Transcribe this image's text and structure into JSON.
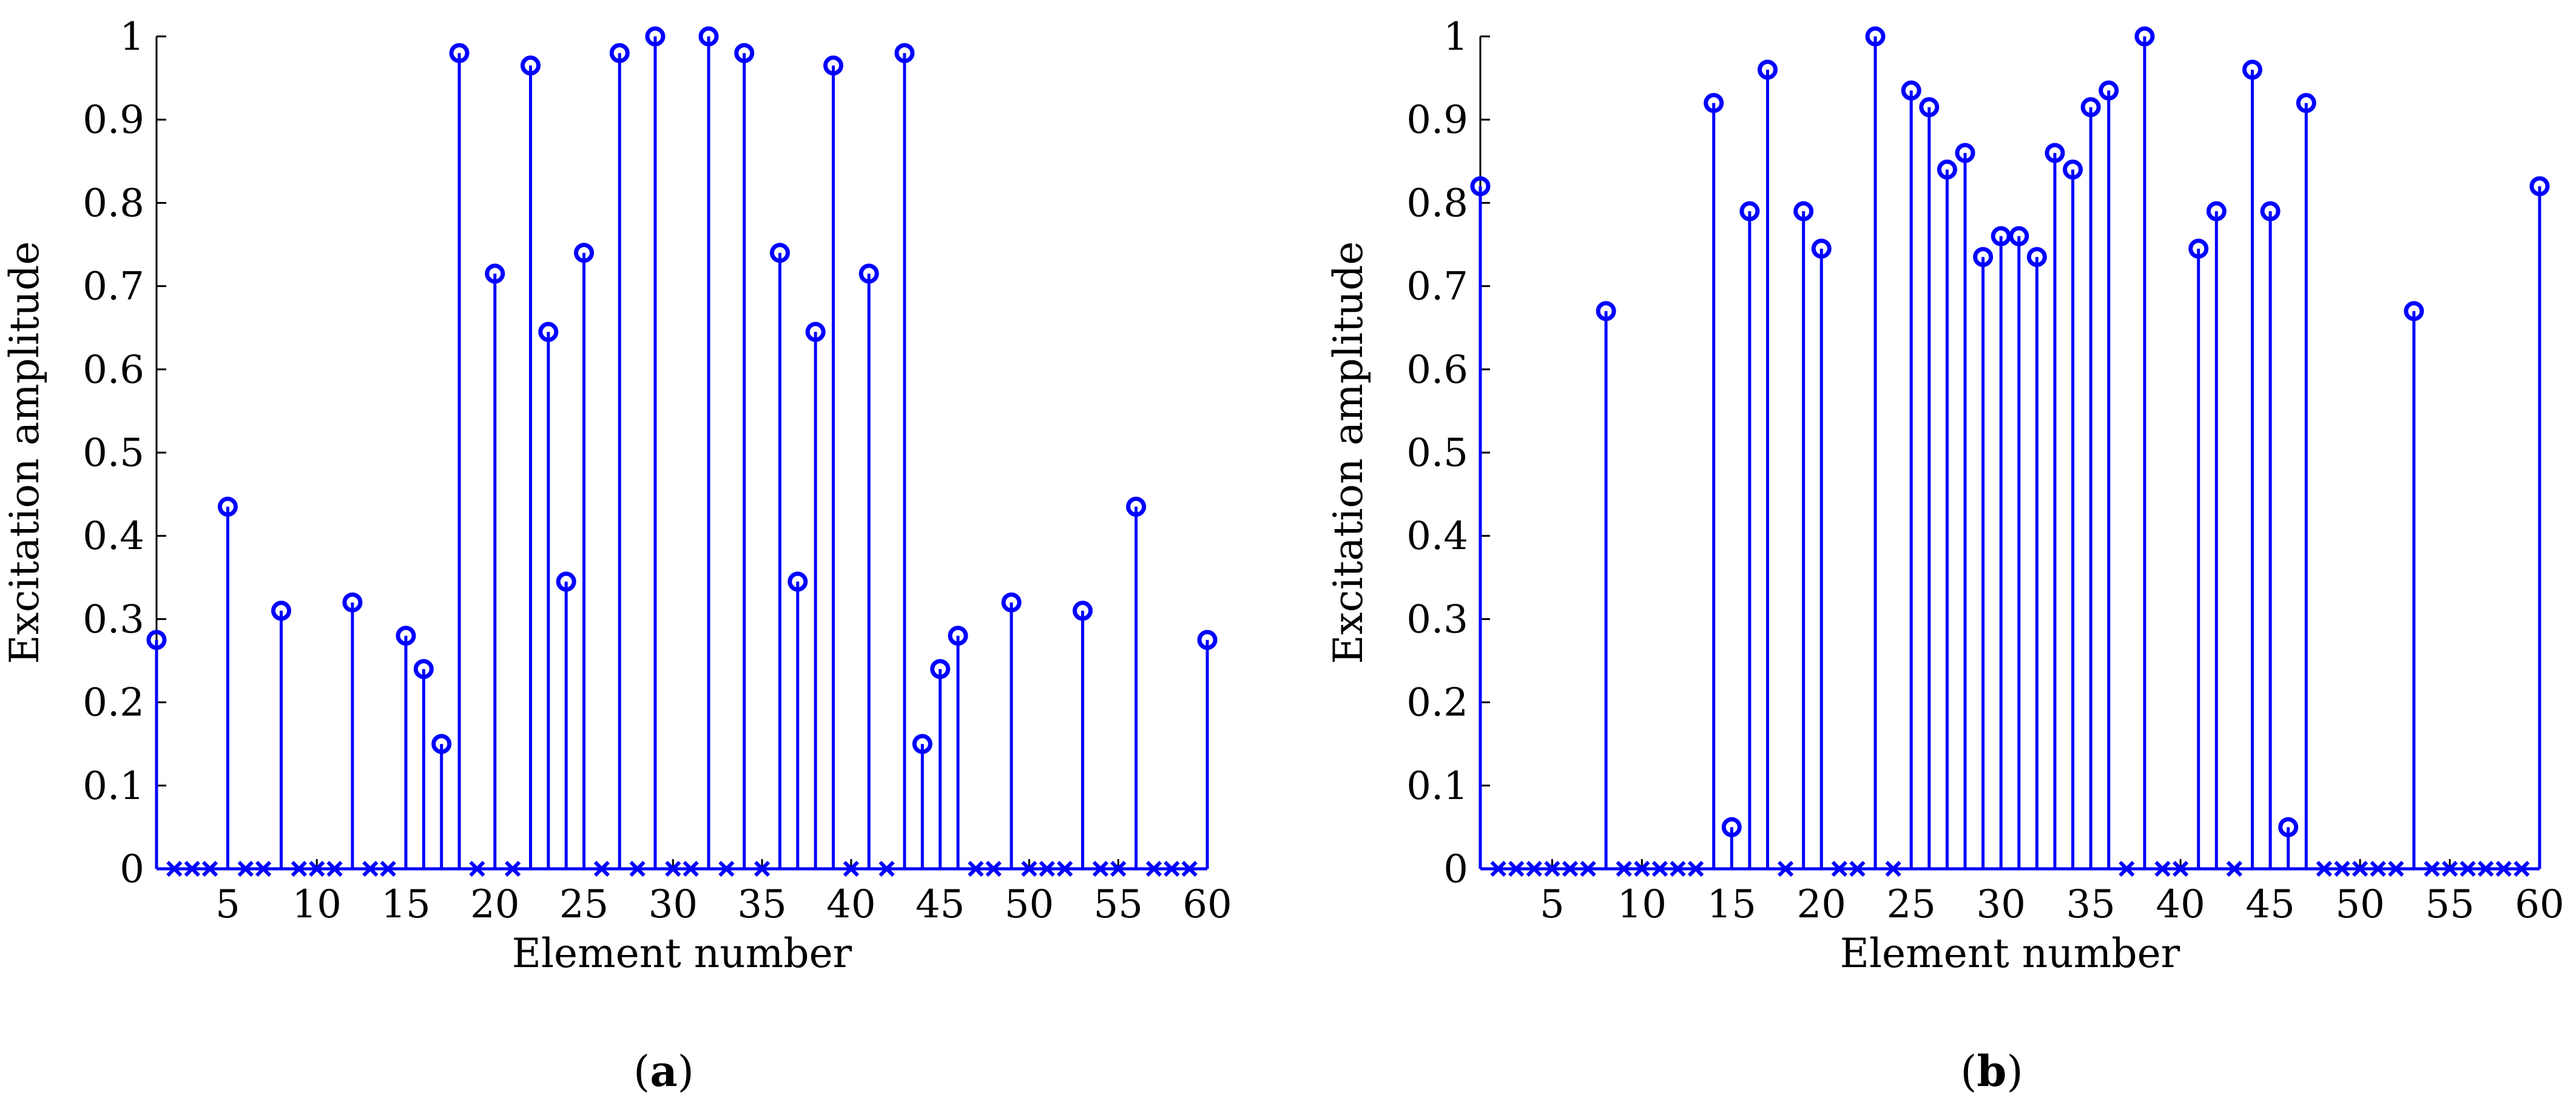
{
  "colors": {
    "series": "#0000ff",
    "axis": "#000000"
  },
  "chart_data": [
    {
      "type": "stem",
      "panel_label": "a",
      "xlabel": "Element number",
      "ylabel": "Excitation amplitude",
      "xlim": [
        1,
        60
      ],
      "ylim": [
        0,
        1
      ],
      "xticks": [
        5,
        10,
        15,
        20,
        25,
        30,
        35,
        40,
        45,
        50,
        55,
        60
      ],
      "xtick_labels": [
        "5",
        "10",
        "15",
        "20",
        "25",
        "30",
        "35",
        "40",
        "45",
        "50",
        "55",
        "60"
      ],
      "yticks": [
        0,
        0.1,
        0.2,
        0.3,
        0.4,
        0.5,
        0.6,
        0.7,
        0.8,
        0.9,
        1
      ],
      "ytick_labels": [
        "0",
        "0.1",
        "0.2",
        "0.3",
        "0.4",
        "0.5",
        "0.6",
        "0.7",
        "0.8",
        "0.9",
        "1"
      ],
      "x": [
        1,
        2,
        3,
        4,
        5,
        6,
        7,
        8,
        9,
        10,
        11,
        12,
        13,
        14,
        15,
        16,
        17,
        18,
        19,
        20,
        21,
        22,
        23,
        24,
        25,
        26,
        27,
        28,
        29,
        30,
        31,
        32,
        33,
        34,
        35,
        36,
        37,
        38,
        39,
        40,
        41,
        42,
        43,
        44,
        45,
        46,
        47,
        48,
        49,
        50,
        51,
        52,
        53,
        54,
        55,
        56,
        57,
        58,
        59,
        60
      ],
      "values": [
        0.275,
        0,
        0,
        0,
        0.435,
        0,
        0,
        0.31,
        0,
        0,
        0,
        0.32,
        0,
        0,
        0.28,
        0.24,
        0.15,
        0.98,
        0,
        0.715,
        0,
        0.965,
        0.645,
        0.345,
        0.74,
        0,
        0.98,
        0,
        1.0,
        0,
        0,
        1.0,
        0,
        0.98,
        0,
        0.74,
        0.345,
        0.645,
        0.965,
        0,
        0.715,
        0,
        0.98,
        0.15,
        0.24,
        0.28,
        0,
        0,
        0.32,
        0,
        0,
        0,
        0.31,
        0,
        0,
        0.435,
        0,
        0,
        0,
        0.275
      ]
    },
    {
      "type": "stem",
      "panel_label": "b",
      "xlabel": "Element number",
      "ylabel": "Excitation amplitude",
      "xlim": [
        1,
        60
      ],
      "ylim": [
        0,
        1
      ],
      "xticks": [
        5,
        10,
        15,
        20,
        25,
        30,
        35,
        40,
        45,
        50,
        55,
        60
      ],
      "xtick_labels": [
        "5",
        "10",
        "15",
        "20",
        "25",
        "30",
        "35",
        "40",
        "45",
        "50",
        "55",
        "60"
      ],
      "yticks": [
        0,
        0.1,
        0.2,
        0.3,
        0.4,
        0.5,
        0.6,
        0.7,
        0.8,
        0.9,
        1
      ],
      "ytick_labels": [
        "0",
        "0.1",
        "0.2",
        "0.3",
        "0.4",
        "0.5",
        "0.6",
        "0.7",
        "0.8",
        "0.9",
        "1"
      ],
      "x": [
        1,
        2,
        3,
        4,
        5,
        6,
        7,
        8,
        9,
        10,
        11,
        12,
        13,
        14,
        15,
        16,
        17,
        18,
        19,
        20,
        21,
        22,
        23,
        24,
        25,
        26,
        27,
        28,
        29,
        30,
        31,
        32,
        33,
        34,
        35,
        36,
        37,
        38,
        39,
        40,
        41,
        42,
        43,
        44,
        45,
        46,
        47,
        48,
        49,
        50,
        51,
        52,
        53,
        54,
        55,
        56,
        57,
        58,
        59,
        60
      ],
      "values": [
        0.82,
        0,
        0,
        0,
        0,
        0,
        0,
        0.67,
        0,
        0,
        0,
        0,
        0,
        0.92,
        0.05,
        0.79,
        0.96,
        0,
        0.79,
        0.745,
        0,
        0,
        1.0,
        0,
        0.935,
        0.915,
        0.84,
        0.86,
        0.735,
        0.76,
        0.76,
        0.735,
        0.86,
        0.84,
        0.915,
        0.935,
        0,
        1.0,
        0,
        0,
        0.745,
        0.79,
        0,
        0.96,
        0.79,
        0.05,
        0.92,
        0,
        0,
        0,
        0,
        0,
        0.67,
        0,
        0,
        0,
        0,
        0,
        0,
        0.82
      ]
    }
  ]
}
